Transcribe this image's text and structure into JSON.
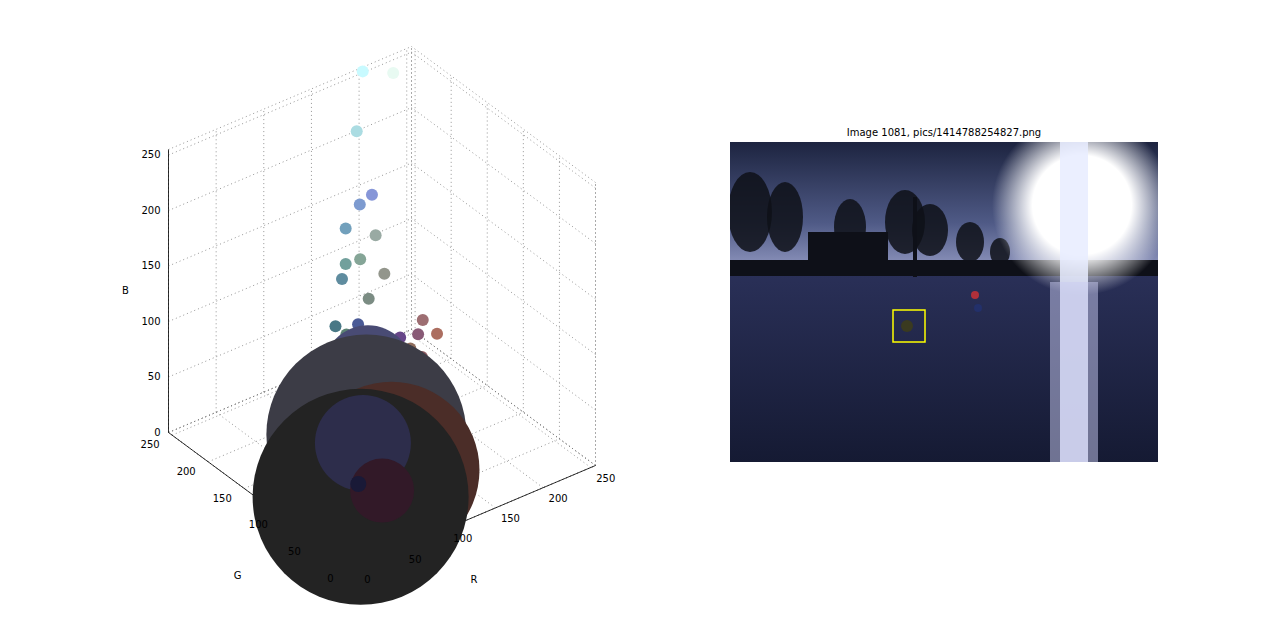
{
  "chart_data": {
    "type": "scatter",
    "xlabel": "R",
    "ylabel": "G",
    "zlabel": "B",
    "xlim": [
      0,
      255
    ],
    "ylim": [
      0,
      255
    ],
    "zlim": [
      0,
      255
    ],
    "xticks": [
      0,
      50,
      100,
      150,
      200,
      250
    ],
    "yticks": [
      0,
      50,
      100,
      150,
      200,
      250
    ],
    "zticks": [
      0,
      50,
      100,
      150,
      200,
      250
    ],
    "grid": true,
    "x": [
      200,
      232,
      171,
      134,
      125,
      114,
      153,
      114,
      133,
      95,
      147,
      123,
      73,
      92,
      74,
      157,
      172,
      103,
      137,
      144,
      141,
      119,
      73,
      60,
      75,
      35,
      60,
      45,
      50,
      25
    ],
    "y": [
      250,
      250,
      220,
      150,
      155,
      160,
      170,
      160,
      165,
      140,
      150,
      140,
      120,
      130,
      90,
      110,
      110,
      70,
      90,
      110,
      90,
      70,
      75,
      60,
      45,
      35,
      60,
      45,
      25,
      25
    ],
    "z": [
      255,
      242,
      226,
      216,
      208,
      188,
      163,
      156,
      151,
      159,
      140,
      131,
      134,
      115,
      150,
      114,
      96,
      137,
      118,
      93,
      96,
      104,
      116,
      70,
      40,
      35,
      95,
      75,
      40,
      55
    ],
    "sizes": [
      36,
      36,
      36,
      36,
      36,
      36,
      36,
      36,
      36,
      36,
      36,
      36,
      36,
      36,
      36,
      36,
      36,
      36,
      36,
      36,
      36,
      36,
      2025,
      10000,
      7744,
      11664,
      49,
      2304,
      1024,
      64
    ]
  },
  "image": {
    "title": "Image 1081, pics/1414788254827.png"
  }
}
